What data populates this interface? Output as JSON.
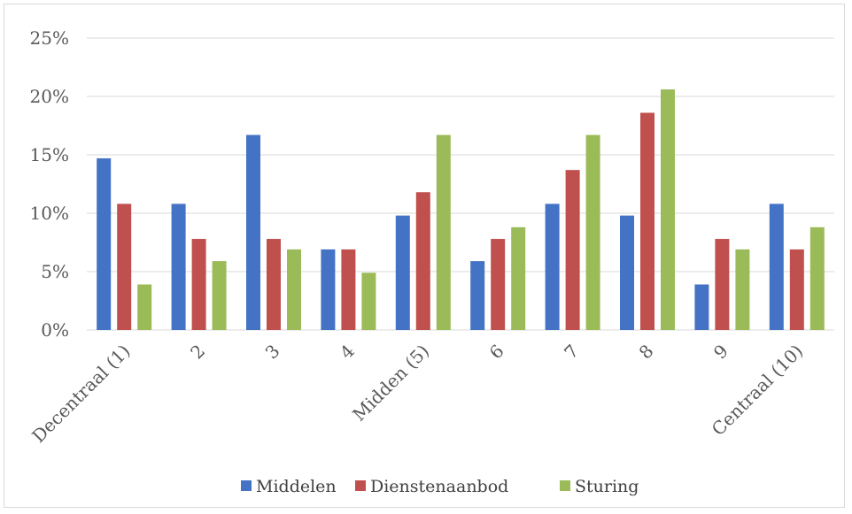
{
  "chart_data": {
    "type": "bar",
    "categories": [
      "Decentraal (1)",
      "2",
      "3",
      "4",
      "Midden (5)",
      "6",
      "7",
      "8",
      "9",
      "Centraal (10)"
    ],
    "series": [
      {
        "name": "Middelen",
        "color": "#4472c4",
        "values": [
          14.7,
          10.8,
          16.7,
          6.9,
          9.8,
          5.9,
          10.8,
          9.8,
          3.9,
          10.8
        ]
      },
      {
        "name": "Dienstenaanbod",
        "color": "#c0504d",
        "values": [
          10.8,
          7.8,
          7.8,
          6.9,
          11.8,
          7.8,
          13.7,
          18.6,
          7.8,
          6.9
        ]
      },
      {
        "name": "Sturing",
        "color": "#9bbb59",
        "values": [
          3.9,
          5.9,
          6.9,
          4.9,
          16.7,
          8.8,
          16.7,
          20.6,
          6.9,
          8.8
        ]
      }
    ],
    "yticks": [
      "0%",
      "5%",
      "10%",
      "15%",
      "20%",
      "25%"
    ],
    "ylim": [
      0,
      25
    ],
    "grid": true,
    "legend_position": "bottom",
    "gridline_color": "#d9d9d9",
    "xlabel": "",
    "ylabel": ""
  }
}
